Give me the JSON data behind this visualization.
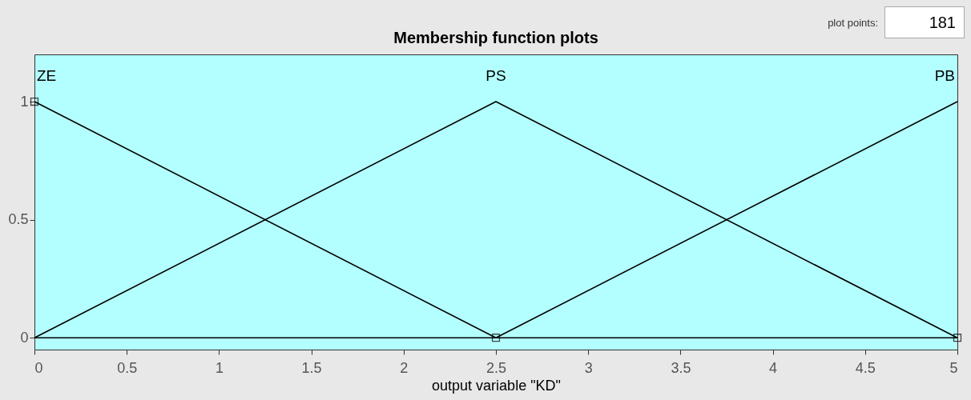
{
  "chart_data": {
    "type": "line",
    "title": "Membership function plots",
    "xlabel": "output variable \"KD\"",
    "annotations": [
      "plot points:",
      "181"
    ],
    "xlim": [
      0,
      5
    ],
    "xticks": [
      0,
      0.5,
      1,
      1.5,
      2,
      2.5,
      3,
      3.5,
      4,
      4.5,
      5
    ],
    "ylim": [
      -0.05,
      1.2
    ],
    "yticks": [
      0,
      0.5,
      1
    ],
    "grid": false,
    "legend": false,
    "series": [
      {
        "name": "ZE",
        "color": "#000000",
        "x": [
          0,
          2.5,
          5
        ],
        "values": [
          1,
          0,
          0
        ],
        "marker": "square"
      },
      {
        "name": "PS",
        "color": "#000000",
        "x": [
          0,
          2.5,
          5
        ],
        "values": [
          0,
          1,
          0
        ]
      },
      {
        "name": "PB",
        "color": "#000000",
        "x": [
          0,
          2.5,
          5
        ],
        "values": [
          0,
          0,
          1
        ]
      }
    ]
  }
}
